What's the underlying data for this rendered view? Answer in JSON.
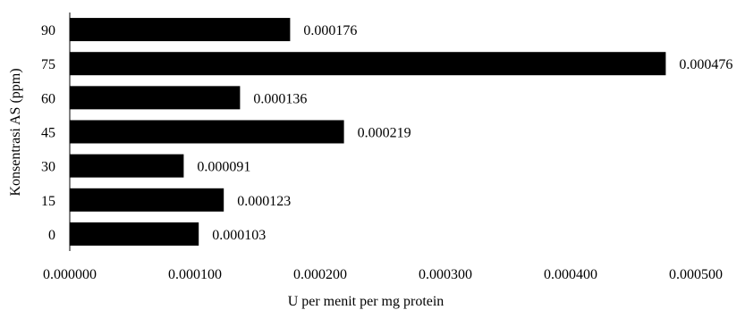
{
  "chart_data": {
    "type": "bar",
    "orientation": "horizontal",
    "categories": [
      "90",
      "75",
      "60",
      "45",
      "30",
      "15",
      "0"
    ],
    "values": [
      0.000176,
      0.000476,
      0.000136,
      0.000219,
      9.1e-05,
      0.000123,
      0.000103
    ],
    "data_labels": [
      "0.000176",
      "0.000476",
      "0.000136",
      "0.000219",
      "0.000091",
      "0.000123",
      "0.000103"
    ],
    "x_ticks": [
      0,
      0.0001,
      0.0002,
      0.0003,
      0.0004,
      0.0005
    ],
    "x_tick_labels": [
      "0.000000",
      "0.000100",
      "0.000200",
      "0.000300",
      "0.000400",
      "0.000500"
    ],
    "xlim": [
      0,
      0.0005
    ],
    "xlabel": "U per menit per mg protein",
    "ylabel": "Konsentrasi AS (ppm)",
    "title": "",
    "grid": false,
    "legend": "none",
    "bar_color": "#000000",
    "axis_color": "#000000"
  }
}
